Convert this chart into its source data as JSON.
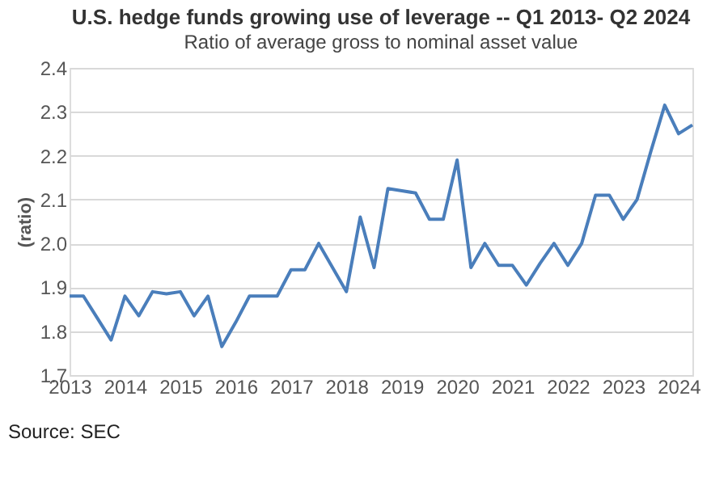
{
  "chart_data": {
    "type": "line",
    "title": "U.S. hedge funds growing use of leverage -- Q1 2013- Q2 2024",
    "subtitle": "Ratio of average gross to nominal asset value",
    "ylabel": "(ratio)",
    "x": [
      2013,
      2013.25,
      2013.5,
      2013.75,
      2014,
      2014.25,
      2014.5,
      2014.75,
      2015,
      2015.25,
      2015.5,
      2015.75,
      2016,
      2016.25,
      2016.5,
      2016.75,
      2017,
      2017.25,
      2017.5,
      2017.75,
      2018,
      2018.25,
      2018.5,
      2018.75,
      2019,
      2019.25,
      2019.5,
      2019.75,
      2020,
      2020.25,
      2020.5,
      2020.75,
      2021,
      2021.25,
      2021.5,
      2021.75,
      2022,
      2022.25,
      2022.5,
      2022.75,
      2023,
      2023.25,
      2023.5,
      2023.75,
      2024,
      2024.25
    ],
    "series": [
      {
        "color": "#4a7ebb",
        "values": [
          1.88,
          1.88,
          1.83,
          1.78,
          1.88,
          1.835,
          1.89,
          1.885,
          1.89,
          1.835,
          1.88,
          1.765,
          1.82,
          1.88,
          1.88,
          1.88,
          1.94,
          1.94,
          2.0,
          1.945,
          1.89,
          2.06,
          1.945,
          2.125,
          2.12,
          2.115,
          2.055,
          2.055,
          2.19,
          1.945,
          2.0,
          1.95,
          1.95,
          1.905,
          1.955,
          2.0,
          1.95,
          2.0,
          2.11,
          2.11,
          2.055,
          2.1,
          2.21,
          2.315,
          2.25,
          2.27
        ]
      }
    ],
    "xlim": [
      2013,
      2024.25
    ],
    "xticks": [
      2013,
      2014,
      2015,
      2016,
      2017,
      2018,
      2019,
      2020,
      2021,
      2022,
      2023,
      2024
    ],
    "ylim": [
      1.7,
      2.4
    ],
    "yticks": [
      1.7,
      1.8,
      1.9,
      {
        "value": 2,
        "label": "2.0"
      },
      2.1,
      2.2,
      2.3,
      2.4
    ],
    "grid": "y",
    "marker": "none",
    "line_style": "solid",
    "annotations": [
      "Source: SEC"
    ]
  }
}
